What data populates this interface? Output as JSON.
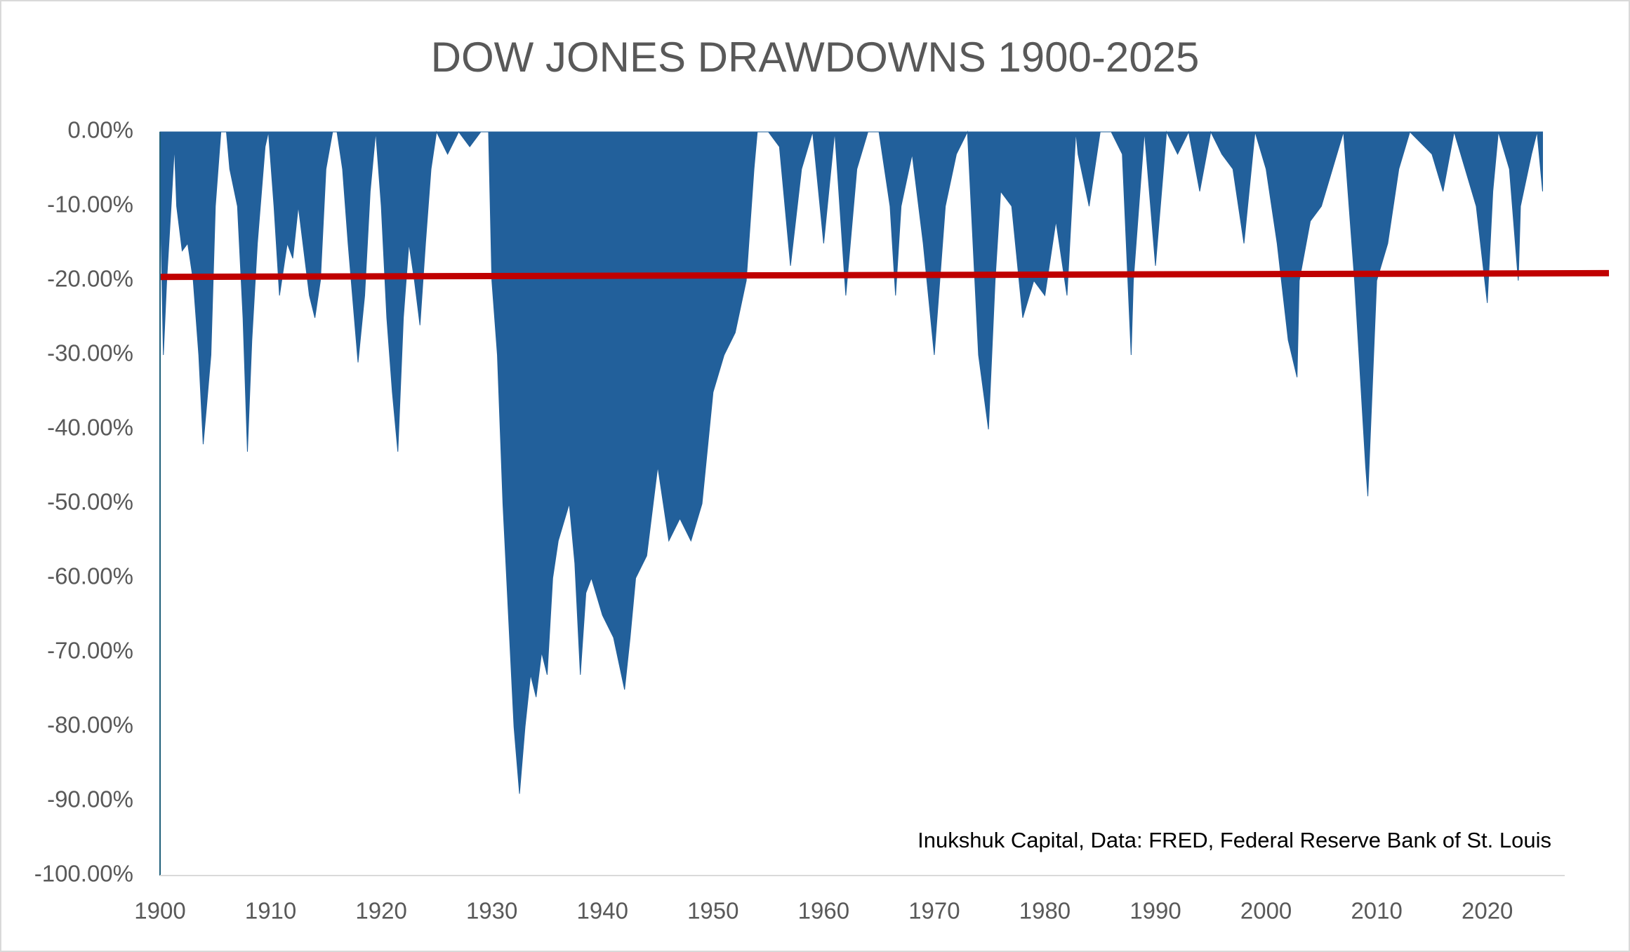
{
  "chart_data": {
    "type": "area",
    "title": "DOW JONES DRAWDOWNS 1900-2025",
    "annotation": "Inukshuk Capital, Data: FRED, Federal Reserve Bank of St. Louis",
    "series": [
      {
        "color": "#22609b",
        "type": "area",
        "x": [
          1900,
          1900.1,
          1900.3,
          1900.6,
          1901,
          1901.3,
          1901.5,
          1902,
          1902.5,
          1903,
          1903.5,
          1903.9,
          1904.2,
          1904.6,
          1905,
          1905.5,
          1906,
          1906.3,
          1907,
          1907.5,
          1907.9,
          1908.3,
          1908.8,
          1909.5,
          1909.8,
          1910.3,
          1910.8,
          1911.5,
          1912,
          1912.5,
          1913.5,
          1914,
          1914.5,
          1915,
          1915.6,
          1916,
          1916.5,
          1917,
          1917.9,
          1918.5,
          1919,
          1919.5,
          1920,
          1920.5,
          1921,
          1921.5,
          1922,
          1922.5,
          1923,
          1923.5,
          1924,
          1924.5,
          1925,
          1926,
          1927,
          1928,
          1929,
          1929.7,
          1930,
          1930.5,
          1931,
          1931.5,
          1932,
          1932.5,
          1933,
          1933.5,
          1934,
          1934.5,
          1935,
          1935.5,
          1936,
          1937,
          1937.5,
          1938,
          1938.5,
          1939,
          1940,
          1941,
          1942,
          1942.5,
          1943,
          1944,
          1945,
          1946,
          1947,
          1948,
          1949,
          1950,
          1951,
          1952,
          1953,
          1953.7,
          1954,
          1955,
          1956,
          1957,
          1958,
          1959,
          1960,
          1961,
          1962,
          1963,
          1964,
          1965,
          1966,
          1966.5,
          1967,
          1968,
          1969,
          1970,
          1970.5,
          1971,
          1972,
          1973,
          1973.5,
          1974,
          1974.9,
          1975.5,
          1976,
          1977,
          1978,
          1979,
          1980,
          1981,
          1982,
          1982.8,
          1983,
          1984,
          1985,
          1986,
          1987,
          1987.8,
          1988,
          1988.5,
          1989,
          1990,
          1991,
          1992,
          1993,
          1994,
          1995,
          1996,
          1997,
          1998,
          1999,
          2000,
          2001,
          2002,
          2002.8,
          2003,
          2004,
          2005,
          2006,
          2007,
          2008,
          2009,
          2009.2,
          2010,
          2011,
          2012,
          2013,
          2015,
          2016,
          2017,
          2018,
          2019,
          2020,
          2020.5,
          2021,
          2022,
          2022.8,
          2023,
          2024,
          2024.5,
          2025
        ],
        "values": [
          0,
          -15,
          -30,
          -20,
          -10,
          -2,
          -10,
          -16,
          -15,
          -20,
          -30,
          -42,
          -37,
          -30,
          -10,
          0,
          0,
          -5,
          -10,
          -25,
          -43,
          -28,
          -15,
          -2,
          0,
          -10,
          -22,
          -15,
          -17,
          -10,
          -22,
          -25,
          -20,
          -5,
          0,
          0,
          -5,
          -15,
          -31,
          -22,
          -8,
          0,
          -10,
          -25,
          -35,
          -43,
          -25,
          -15,
          -20,
          -26,
          -15,
          -5,
          0,
          -3,
          0,
          -2,
          0,
          0,
          -20,
          -30,
          -50,
          -65,
          -80,
          -89,
          -80,
          -73,
          -76,
          -70,
          -73,
          -60,
          -55,
          -50,
          -58,
          -73,
          -62,
          -60,
          -65,
          -68,
          -75,
          -68,
          -60,
          -57,
          -45,
          -55,
          -52,
          -55,
          -50,
          -35,
          -30,
          -27,
          -20,
          -5,
          0,
          0,
          -2,
          -18,
          -5,
          0,
          -15,
          0,
          -22,
          -5,
          0,
          0,
          -10,
          -22,
          -10,
          -3,
          -15,
          -30,
          -20,
          -10,
          -3,
          0,
          -15,
          -30,
          -40,
          -20,
          -8,
          -10,
          -25,
          -20,
          -22,
          -12,
          -22,
          0,
          -3,
          -10,
          0,
          0,
          -3,
          -30,
          -20,
          -10,
          0,
          -18,
          0,
          -3,
          0,
          -8,
          0,
          -3,
          -5,
          -15,
          0,
          -5,
          -15,
          -28,
          -33,
          -20,
          -12,
          -10,
          -5,
          0,
          -20,
          -45,
          -49,
          -20,
          -15,
          -5,
          0,
          -3,
          -8,
          0,
          -5,
          -10,
          -23,
          -8,
          0,
          -5,
          -20,
          -10,
          -3,
          0,
          -8
        ]
      },
      {
        "color": "#c00000",
        "type": "line",
        "x": [
          1900,
          2031
        ],
        "values": [
          -19.5,
          -19.0
        ]
      }
    ],
    "xlim": [
      1900,
      2027
    ],
    "xticks": [
      1900,
      1910,
      1920,
      1930,
      1940,
      1950,
      1960,
      1970,
      1980,
      1990,
      2000,
      2010,
      2020
    ],
    "ylim": [
      -100,
      0
    ],
    "yticks": [
      {
        "value": 0,
        "label": "0.00%"
      },
      {
        "value": -10,
        "label": "-10.00%"
      },
      {
        "value": -20,
        "label": "-20.00%"
      },
      {
        "value": -30,
        "label": "-30.00%"
      },
      {
        "value": -40,
        "label": "-40.00%"
      },
      {
        "value": -50,
        "label": "-50.00%"
      },
      {
        "value": -60,
        "label": "-60.00%"
      },
      {
        "value": -70,
        "label": "-70.00%"
      },
      {
        "value": -80,
        "label": "-80.00%"
      },
      {
        "value": -90,
        "label": "-90.00%"
      },
      {
        "value": -100,
        "label": "-100.00%"
      }
    ],
    "grid": false
  }
}
